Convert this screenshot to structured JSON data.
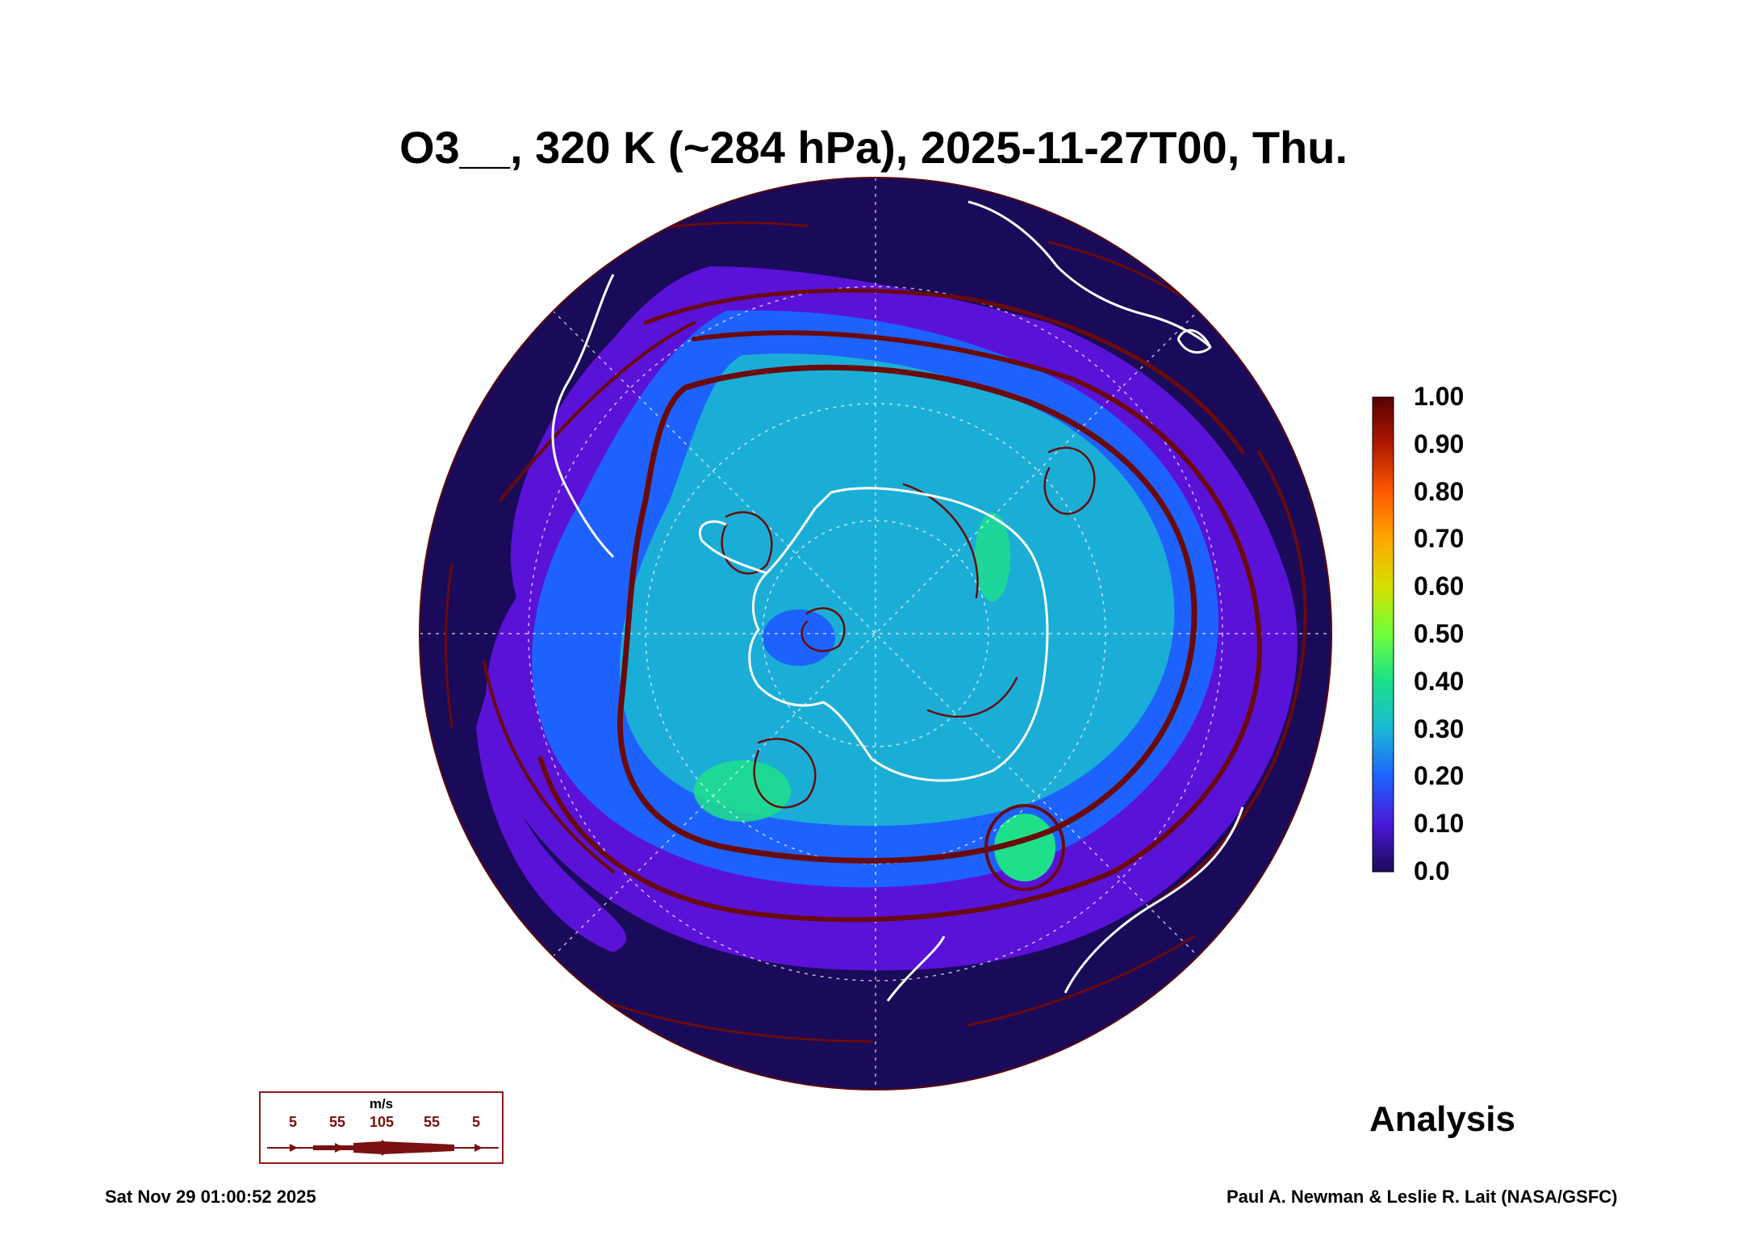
{
  "title": "O3__, 320 K (~284 hPa), 2025-11-27T00, Thu.",
  "colorbar": {
    "labels": [
      "1.00",
      "0.90",
      "0.80",
      "0.70",
      "0.60",
      "0.50",
      "0.40",
      "0.30",
      "0.20",
      "0.10",
      "0.0"
    ],
    "colors": [
      "#5a0000",
      "#b01a00",
      "#ff5a00",
      "#ffa800",
      "#d6e000",
      "#6cff3a",
      "#19e08a",
      "#1bb8d6",
      "#1d62ff",
      "#4a18d8",
      "#1a0a5a"
    ]
  },
  "wind_key": {
    "unit": "m/s",
    "ticks": [
      "5",
      "55",
      "105",
      "55",
      "5"
    ],
    "color": "#7a1010"
  },
  "analysis_label": "Analysis",
  "footer": {
    "timestamp": "Sat Nov 29 01:00:52 2025",
    "credit": "Paul A. Newman & Leslie R. Lait (NASA/GSFC)"
  },
  "map_colors": {
    "background": "#1a0a5a",
    "band_purple": "#5a12d8",
    "band_blue": "#1d62ff",
    "core_cyan": "#1aaed6",
    "patch_green": "#1ee08a",
    "streamline": "#6a0a0a",
    "coastline": "#ffffff"
  }
}
